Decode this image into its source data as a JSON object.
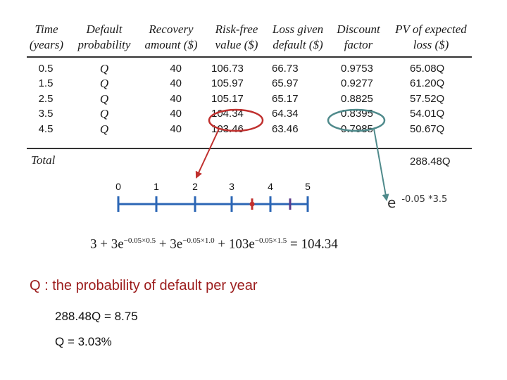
{
  "table": {
    "headers": [
      [
        "Time",
        "(years)"
      ],
      [
        "Default",
        "probability"
      ],
      [
        "Recovery",
        "amount ($)"
      ],
      [
        "Risk-free",
        "value ($)"
      ],
      [
        "Loss given",
        "default ($)"
      ],
      [
        "Discount",
        "factor"
      ],
      [
        "PV of expected",
        "loss ($)"
      ]
    ],
    "rows": [
      [
        "0.5",
        "Q",
        "40",
        "106.73",
        "66.73",
        "0.9753",
        "65.08Q"
      ],
      [
        "1.5",
        "Q",
        "40",
        "105.97",
        "65.97",
        "0.9277",
        "61.20Q"
      ],
      [
        "2.5",
        "Q",
        "40",
        "105.17",
        "65.17",
        "0.8825",
        "57.52Q"
      ],
      [
        "3.5",
        "Q",
        "40",
        "104.34",
        "64.34",
        "0.8395",
        "54.01Q"
      ],
      [
        "4.5",
        "Q",
        "40",
        "103.46",
        "63.46",
        "0.7985",
        "50.67Q"
      ]
    ],
    "total_label": "Total",
    "total_value": "288.48Q"
  },
  "timeline": {
    "labels": [
      "0",
      "1",
      "2",
      "3",
      "4",
      "5"
    ]
  },
  "exp_note": {
    "base": "e",
    "exponent": "-0.05 *3.5"
  },
  "formula": {
    "t1": "3 + 3e",
    "e1": "−0.05×0.5",
    "t2": " + 3e",
    "e2": "−0.05×1.0",
    "t3": " + 103e",
    "e3": "−0.05×1.5",
    "t4": " = 104.34"
  },
  "q_definition": "Q : the probability of default per year",
  "equation1": "288.48Q = 8.75",
  "equation2": "Q = 3.03%",
  "colors": {
    "accent_red": "#c0302e",
    "accent_teal": "#4f8a8b",
    "timeline_blue": "#2b66b5",
    "text_red": "#9b1b1b"
  }
}
